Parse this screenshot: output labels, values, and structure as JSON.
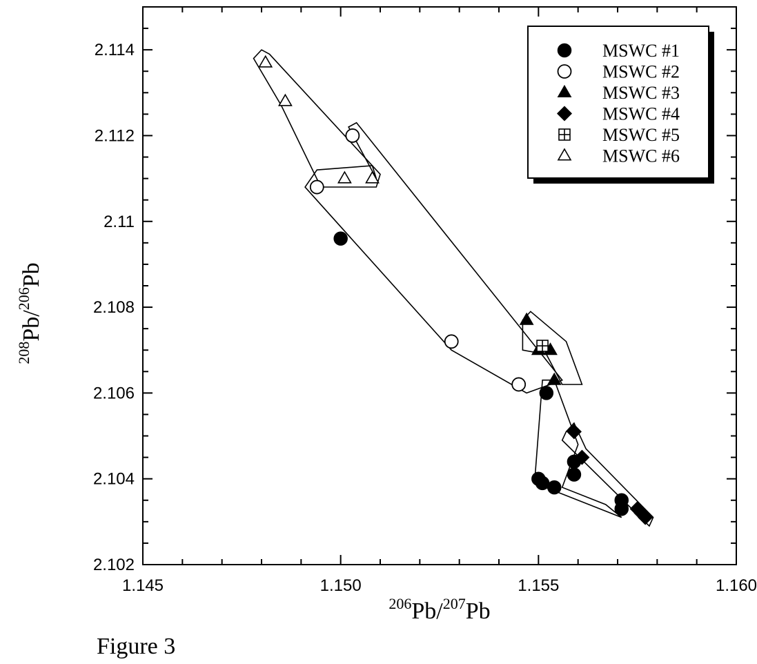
{
  "caption": "Figure 3",
  "chart_data": {
    "type": "scatter",
    "xlabel": {
      "sup1": "206",
      "base1": "Pb/",
      "sup2": "207",
      "base2": "Pb"
    },
    "ylabel": {
      "sup1": "208",
      "base1": "Pb/",
      "sup2": "206",
      "base2": "Pb"
    },
    "xlim": [
      1.145,
      1.16
    ],
    "ylim": [
      2.102,
      2.115
    ],
    "x_ticks": [
      "1.145",
      "1.150",
      "1.155",
      "1.160"
    ],
    "y_ticks": [
      "2.102",
      "2.104",
      "2.106",
      "2.108",
      "2.11",
      "2.112",
      "2.114"
    ],
    "legend_position": "top-right",
    "colors": {
      "ink": "#000000",
      "paper": "#ffffff"
    },
    "series": [
      {
        "name": "MSWC #1",
        "marker": "filled-circle",
        "x": [
          1.15,
          1.1552,
          1.155,
          1.1551,
          1.1554,
          1.1559,
          1.1559,
          1.1571,
          1.1571
        ],
        "y": [
          2.1096,
          2.106,
          2.104,
          2.1039,
          2.1038,
          2.1044,
          2.1041,
          2.1035,
          2.1033
        ]
      },
      {
        "name": "MSWC #2",
        "marker": "open-circle",
        "x": [
          1.1494,
          1.1503,
          1.1528,
          1.1545
        ],
        "y": [
          2.1108,
          2.112,
          2.1072,
          2.1062
        ]
      },
      {
        "name": "MSWC #3",
        "marker": "filled-triangle",
        "x": [
          1.1547,
          1.155,
          1.1553,
          1.1554
        ],
        "y": [
          2.1077,
          2.107,
          2.107,
          2.1063
        ]
      },
      {
        "name": "MSWC #4",
        "marker": "filled-diamond",
        "x": [
          1.1559,
          1.1561,
          1.1575,
          1.1576,
          1.1577
        ],
        "y": [
          2.1051,
          2.1045,
          2.1033,
          2.1032,
          2.1031
        ]
      },
      {
        "name": "MSWC #5",
        "marker": "boxed-plus",
        "x": [
          1.1551
        ],
        "y": [
          2.1071
        ]
      },
      {
        "name": "MSWC #6",
        "marker": "open-triangle",
        "x": [
          1.1481,
          1.1486,
          1.1501,
          1.1508
        ],
        "y": [
          2.1137,
          2.1128,
          2.111,
          2.111
        ]
      }
    ],
    "outlines": [
      [
        [
          1.148,
          2.114
        ],
        [
          1.1482,
          2.1139
        ],
        [
          1.151,
          2.1111
        ],
        [
          1.1509,
          2.1108
        ],
        [
          1.1495,
          2.1108
        ],
        [
          1.1485,
          2.1127
        ],
        [
          1.1478,
          2.1138
        ]
      ],
      [
        [
          1.1502,
          2.1122
        ],
        [
          1.1504,
          2.1123
        ],
        [
          1.1556,
          2.1063
        ],
        [
          1.1547,
          2.106
        ],
        [
          1.1528,
          2.107
        ],
        [
          1.1491,
          2.1108
        ],
        [
          1.1494,
          2.1112
        ],
        [
          1.1508,
          2.1113
        ],
        [
          1.1509,
          2.111
        ]
      ],
      [
        [
          1.1548,
          2.1079
        ],
        [
          1.1557,
          2.1072
        ],
        [
          1.1561,
          2.1062
        ],
        [
          1.1556,
          2.1062
        ],
        [
          1.1552,
          2.1069
        ],
        [
          1.1546,
          2.107
        ],
        [
          1.1546,
          2.1077
        ]
      ],
      [
        [
          1.1551,
          2.1063
        ],
        [
          1.1554,
          2.1063
        ],
        [
          1.156,
          2.1048
        ],
        [
          1.1556,
          2.1038
        ],
        [
          1.1567,
          2.1034
        ],
        [
          1.1571,
          2.1031
        ],
        [
          1.1549,
          2.1039
        ]
      ],
      [
        [
          1.1557,
          2.1051
        ],
        [
          1.1559,
          2.1053
        ],
        [
          1.1562,
          2.1047
        ],
        [
          1.1579,
          2.1031
        ],
        [
          1.1578,
          2.1029
        ],
        [
          1.1556,
          2.1049
        ]
      ]
    ]
  }
}
